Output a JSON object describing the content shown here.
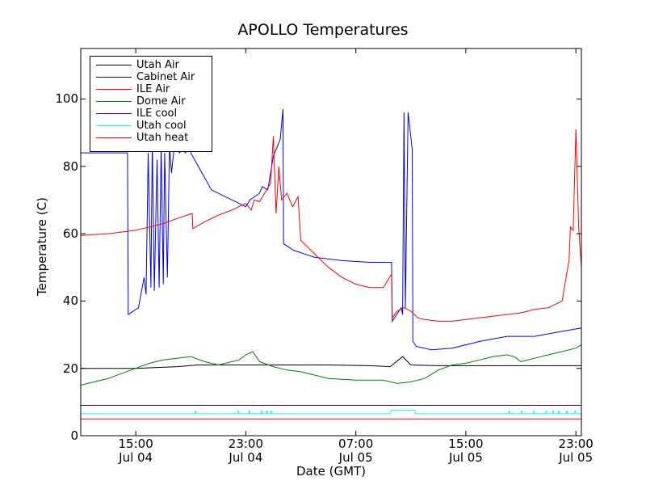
{
  "chart_data": {
    "type": "line",
    "title": "APOLLO Temperatures",
    "xlabel": "Date (GMT)",
    "ylabel": "Temperature (C)",
    "x_unit": "hours since Jul 04 11:00 GMT",
    "xlim": [
      0,
      36.4
    ],
    "ylim": [
      0,
      115
    ],
    "yticks": [
      0,
      20,
      40,
      60,
      80,
      100
    ],
    "xticks": [
      {
        "x": 4,
        "time": "15:00",
        "date": "Jul 04"
      },
      {
        "x": 12,
        "time": "23:00",
        "date": "Jul 04"
      },
      {
        "x": 20,
        "time": "07:00",
        "date": "Jul 05"
      },
      {
        "x": 28,
        "time": "15:00",
        "date": "Jul 05"
      },
      {
        "x": 36,
        "time": "23:00",
        "date": "Jul 05"
      }
    ],
    "legend_position": "top-left",
    "series": [
      {
        "name": "Utah Air",
        "color": "#000000",
        "x": [
          0,
          4,
          7,
          8.5,
          10,
          12,
          15,
          18,
          21,
          22.5,
          23.4,
          24,
          26,
          28,
          30,
          32,
          34,
          36,
          36.4
        ],
        "y": [
          20,
          20,
          20.5,
          21,
          21,
          21,
          21,
          21,
          20.8,
          20.5,
          23.5,
          21,
          20.8,
          20.8,
          20.8,
          20.8,
          20.8,
          20.8,
          20.8
        ]
      },
      {
        "name": "Cabinet Air",
        "color": "#0000ff",
        "x": [
          0,
          3.4,
          3.45,
          4.2,
          4.6,
          4.75,
          4.9,
          5.1,
          5.2,
          5.35,
          5.55,
          5.7,
          5.85,
          6,
          6.1,
          6.3,
          6.45,
          6.6,
          6.8,
          7.2,
          7.35,
          7.6,
          7.9,
          8,
          9.5,
          11,
          11.5,
          12,
          12.3,
          13,
          13.2,
          13.6,
          14,
          14.2,
          14.5,
          14.7,
          14.75,
          15.5,
          17,
          19,
          21,
          22.6,
          22.65,
          23.3,
          23.4,
          23.5,
          23.6,
          23.8,
          24.1,
          24.15,
          24.4,
          25.5,
          27,
          29,
          31,
          33,
          35,
          36.4
        ],
        "y": [
          84,
          84,
          36,
          38,
          47,
          42,
          84,
          44,
          88,
          43,
          82,
          44,
          86,
          45,
          84,
          47,
          86,
          78,
          86,
          84,
          86,
          84,
          86,
          84,
          73,
          70,
          69,
          68,
          70,
          72,
          74,
          73,
          83,
          85,
          88,
          97,
          57,
          55,
          53,
          52,
          51.5,
          51.5,
          34,
          38,
          36,
          96,
          38,
          96,
          85,
          28,
          26.5,
          25.5,
          26,
          28,
          29.5,
          29.5,
          31,
          32
        ]
      },
      {
        "name": "ILE Air",
        "color": "#ff0000",
        "x": [
          0,
          2,
          4,
          5,
          6,
          7,
          8.1,
          8.15,
          9,
          10,
          11,
          12,
          12.4,
          12.6,
          13,
          13.8,
          14,
          14.2,
          14.4,
          14.6,
          15,
          15.4,
          15.8,
          16,
          17,
          18,
          19,
          20,
          21,
          22,
          22.6,
          22.65,
          23,
          23.5,
          24,
          24.5,
          25,
          26,
          27,
          28,
          30,
          32,
          33,
          34,
          35,
          35.2,
          35.5,
          35.6,
          35.8,
          36,
          36.2,
          36.4
        ],
        "y": [
          59.5,
          60,
          61,
          62,
          63,
          64.5,
          66,
          61.5,
          63.5,
          65.5,
          67,
          69,
          67,
          70,
          69.5,
          75,
          89,
          66,
          80,
          70,
          72,
          68,
          71,
          58,
          54,
          50,
          47,
          45,
          44,
          44,
          48,
          35,
          37,
          38,
          37,
          35,
          34.5,
          34,
          34,
          34.5,
          35.5,
          36.5,
          37.5,
          38,
          40,
          45,
          52,
          62,
          61,
          91,
          62,
          50
        ]
      },
      {
        "name": "Dome Air",
        "color": "#008000",
        "x": [
          0,
          2,
          4,
          5,
          6,
          7,
          8,
          9,
          10,
          11,
          11.5,
          12,
          12.5,
          13,
          14,
          15,
          16,
          17,
          18,
          20,
          22,
          23,
          24,
          25,
          26,
          27,
          28,
          29,
          30,
          31,
          31.5,
          32,
          33,
          34,
          35,
          36,
          36.4
        ],
        "y": [
          15,
          17,
          20,
          21.5,
          22.5,
          23,
          23.5,
          22,
          21,
          22,
          22.5,
          24,
          25,
          22,
          20.5,
          19.5,
          19,
          18,
          17,
          16.5,
          16.5,
          15.5,
          16,
          17,
          19.5,
          21,
          21.5,
          22.5,
          23.5,
          24,
          23.5,
          22,
          23,
          24,
          25,
          26,
          27
        ]
      },
      {
        "name": "ILE cool",
        "color": "#5500aa",
        "x": [
          0,
          36.4
        ],
        "y": [
          9,
          9
        ]
      },
      {
        "name": "Utah cool",
        "color": "#00ffff",
        "x": [
          0,
          8.3,
          8.35,
          8.4,
          11.4,
          11.45,
          11.5,
          12.2,
          12.25,
          12.3,
          13.1,
          13.15,
          13.2,
          13.5,
          13.55,
          13.6,
          13.8,
          13.85,
          13.9,
          22.5,
          22.55,
          24.3,
          24.35,
          24.4,
          31.1,
          31.15,
          31.2,
          32,
          32.05,
          32.1,
          32.9,
          32.95,
          33,
          33.8,
          33.85,
          33.9,
          34.3,
          34.35,
          34.4,
          34.7,
          34.75,
          34.8,
          35.3,
          35.35,
          35.4,
          35.9,
          35.95,
          36,
          36.4
        ],
        "y": [
          6.5,
          6.5,
          7.5,
          6.5,
          6.5,
          7.5,
          6.5,
          6.5,
          7.5,
          6.5,
          6.5,
          7.5,
          6.5,
          6.5,
          7.5,
          6.5,
          6.5,
          7.5,
          6.5,
          6.5,
          7.5,
          7.5,
          6.5,
          6.5,
          6.5,
          7.5,
          6.5,
          6.5,
          7.5,
          6.5,
          6.5,
          7.5,
          6.5,
          6.5,
          7.5,
          6.5,
          6.5,
          7.5,
          6.5,
          6.5,
          7.5,
          6.5,
          6.5,
          7.5,
          6.5,
          6.5,
          7.5,
          6.5,
          6.5
        ]
      },
      {
        "name": "Utah heat",
        "color": "#ff0000",
        "x": [
          0,
          36.4
        ],
        "y": [
          5,
          5
        ]
      }
    ]
  }
}
